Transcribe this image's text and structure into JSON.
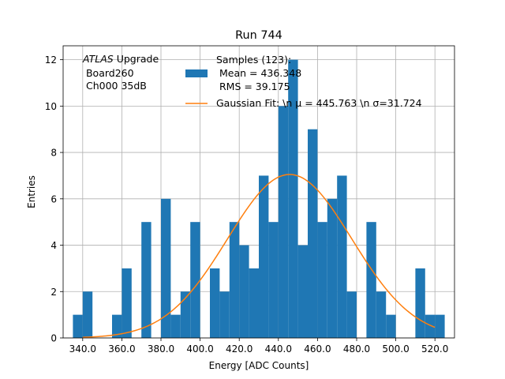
{
  "chart_data": {
    "type": "bar",
    "title": "Run 744",
    "xlabel": "Energy [ADC Counts]",
    "ylabel": "Entries",
    "xlim": [
      330.0,
      530.0
    ],
    "ylim": [
      0,
      12.6
    ],
    "grid": true,
    "legend_position": "top-right",
    "bin_width": 5.0,
    "histogram": {
      "name": "Samples (123):\n Mean = 436.348\n RMS = 39.175",
      "color": "#1f77b4",
      "bins": [
        {
          "x": 337.5,
          "value": 1
        },
        {
          "x": 342.5,
          "value": 2
        },
        {
          "x": 347.5,
          "value": 0
        },
        {
          "x": 352.5,
          "value": 0
        },
        {
          "x": 357.5,
          "value": 1
        },
        {
          "x": 362.5,
          "value": 3
        },
        {
          "x": 367.5,
          "value": 0
        },
        {
          "x": 372.5,
          "value": 5
        },
        {
          "x": 377.5,
          "value": 0
        },
        {
          "x": 382.5,
          "value": 6
        },
        {
          "x": 387.5,
          "value": 1
        },
        {
          "x": 392.5,
          "value": 2
        },
        {
          "x": 397.5,
          "value": 5
        },
        {
          "x": 402.5,
          "value": 0
        },
        {
          "x": 407.5,
          "value": 3
        },
        {
          "x": 412.5,
          "value": 2
        },
        {
          "x": 417.5,
          "value": 5
        },
        {
          "x": 422.5,
          "value": 4
        },
        {
          "x": 427.5,
          "value": 3
        },
        {
          "x": 432.5,
          "value": 7
        },
        {
          "x": 437.5,
          "value": 5
        },
        {
          "x": 442.5,
          "value": 10
        },
        {
          "x": 447.5,
          "value": 12
        },
        {
          "x": 452.5,
          "value": 4
        },
        {
          "x": 457.5,
          "value": 9
        },
        {
          "x": 462.5,
          "value": 5
        },
        {
          "x": 467.5,
          "value": 6
        },
        {
          "x": 472.5,
          "value": 7
        },
        {
          "x": 477.5,
          "value": 2
        },
        {
          "x": 482.5,
          "value": 0
        },
        {
          "x": 487.5,
          "value": 5
        },
        {
          "x": 492.5,
          "value": 2
        },
        {
          "x": 497.5,
          "value": 1
        },
        {
          "x": 502.5,
          "value": 0
        },
        {
          "x": 507.5,
          "value": 0
        },
        {
          "x": 512.5,
          "value": 3
        },
        {
          "x": 517.5,
          "value": 1
        },
        {
          "x": 522.5,
          "value": 1
        }
      ]
    },
    "fit": {
      "name": "Gaussian Fit: \\n μ = 445.763 \\n σ=31.724",
      "color": "#ff7f0e",
      "mu": 445.763,
      "sigma": 31.724,
      "amplitude": 7.05,
      "x_range": [
        340.0,
        520.0
      ]
    },
    "xticks": [
      {
        "value": 340,
        "label": "340.0"
      },
      {
        "value": 360,
        "label": "360.0"
      },
      {
        "value": 380,
        "label": "380.0"
      },
      {
        "value": 400,
        "label": "400.0"
      },
      {
        "value": 420,
        "label": "420.0"
      },
      {
        "value": 440,
        "label": "440.0"
      },
      {
        "value": 460,
        "label": "460.0"
      },
      {
        "value": 480,
        "label": "480.0"
      },
      {
        "value": 500,
        "label": "500.0"
      },
      {
        "value": 520,
        "label": "520.0"
      }
    ],
    "yticks": [
      {
        "value": 0,
        "label": "0"
      },
      {
        "value": 2,
        "label": "2"
      },
      {
        "value": 4,
        "label": "4"
      },
      {
        "value": 6,
        "label": "6"
      },
      {
        "value": 8,
        "label": "8"
      },
      {
        "value": 10,
        "label": "10"
      },
      {
        "value": 12,
        "label": "12"
      }
    ],
    "annotation": {
      "atlas": "ATLAS",
      "upgrade": " Upgrade",
      "line2": " Board260",
      "line3": " Ch000 35dB"
    }
  }
}
